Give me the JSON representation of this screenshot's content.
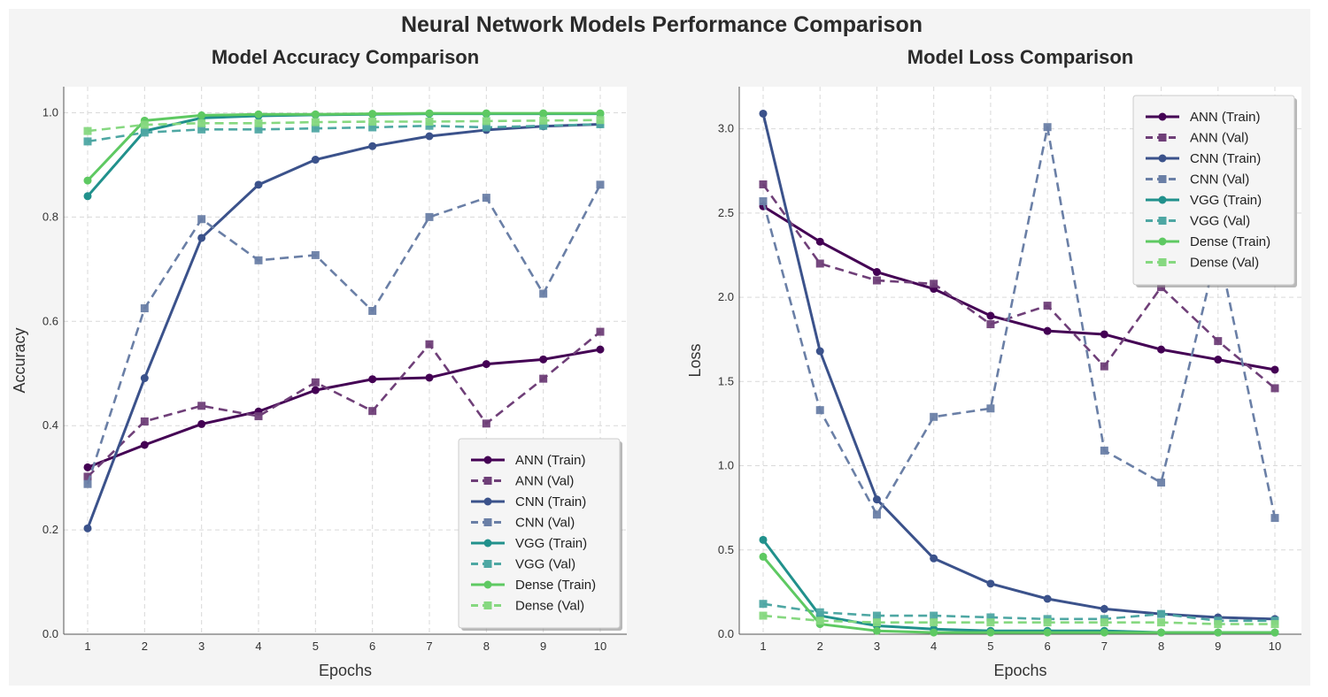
{
  "suptitle": "Neural Network Models Performance Comparison",
  "chart_data": [
    {
      "type": "line",
      "title": "Model Accuracy Comparison",
      "xlabel": "Epochs",
      "ylabel": "Accuracy",
      "x": [
        1,
        2,
        3,
        4,
        5,
        6,
        7,
        8,
        9,
        10
      ],
      "xticks": [
        "1",
        "2",
        "3",
        "4",
        "5",
        "6",
        "7",
        "8",
        "9",
        "10"
      ],
      "ylim": [
        0,
        1.05
      ],
      "yticks": [
        "0.0",
        "0.2",
        "0.4",
        "0.6",
        "0.8",
        "1.0"
      ],
      "ytick_values": [
        0,
        0.2,
        0.4,
        0.6,
        0.8,
        1.0
      ],
      "grid": true,
      "legend_position": "bottom-right",
      "series": [
        {
          "name": "ANN (Train)",
          "color": "#440154",
          "style": "solid",
          "marker": "circle",
          "values": [
            0.32,
            0.363,
            0.403,
            0.427,
            0.468,
            0.489,
            0.492,
            0.518,
            0.527,
            0.546
          ]
        },
        {
          "name": "ANN (Val)",
          "color": "#6f3f78",
          "style": "dashed",
          "marker": "square",
          "values": [
            0.302,
            0.408,
            0.438,
            0.418,
            0.483,
            0.428,
            0.556,
            0.404,
            0.49,
            0.58
          ]
        },
        {
          "name": "CNN (Train)",
          "color": "#3b528b",
          "style": "solid",
          "marker": "circle",
          "values": [
            0.203,
            0.491,
            0.76,
            0.862,
            0.91,
            0.936,
            0.955,
            0.967,
            0.974,
            0.978
          ]
        },
        {
          "name": "CNN (Val)",
          "color": "#6a7fa6",
          "style": "dashed",
          "marker": "square",
          "values": [
            0.288,
            0.625,
            0.796,
            0.717,
            0.727,
            0.62,
            0.8,
            0.837,
            0.653,
            0.862
          ]
        },
        {
          "name": "VGG (Train)",
          "color": "#21918c",
          "style": "solid",
          "marker": "circle",
          "values": [
            0.84,
            0.965,
            0.99,
            0.994,
            0.996,
            0.997,
            0.998,
            0.998,
            0.998,
            0.998
          ]
        },
        {
          "name": "VGG (Val)",
          "color": "#4ea7a3",
          "style": "dashed",
          "marker": "square",
          "values": [
            0.945,
            0.962,
            0.968,
            0.968,
            0.97,
            0.972,
            0.975,
            0.972,
            0.975,
            0.978
          ]
        },
        {
          "name": "Dense (Train)",
          "color": "#5ec962",
          "style": "solid",
          "marker": "circle",
          "values": [
            0.87,
            0.985,
            0.995,
            0.997,
            0.997,
            0.998,
            0.999,
            0.999,
            0.999,
            0.999
          ]
        },
        {
          "name": "Dense (Val)",
          "color": "#86d880",
          "style": "dashed",
          "marker": "square",
          "values": [
            0.965,
            0.977,
            0.98,
            0.98,
            0.982,
            0.983,
            0.983,
            0.984,
            0.985,
            0.986
          ]
        }
      ]
    },
    {
      "type": "line",
      "title": "Model Loss Comparison",
      "xlabel": "Epochs",
      "ylabel": "Loss",
      "x": [
        1,
        2,
        3,
        4,
        5,
        6,
        7,
        8,
        9,
        10
      ],
      "xticks": [
        "1",
        "2",
        "3",
        "4",
        "5",
        "6",
        "7",
        "8",
        "9",
        "10"
      ],
      "ylim": [
        0,
        3.25
      ],
      "yticks": [
        "0.0",
        "0.5",
        "1.0",
        "1.5",
        "2.0",
        "2.5",
        "3.0"
      ],
      "ytick_values": [
        0,
        0.5,
        1.0,
        1.5,
        2.0,
        2.5,
        3.0
      ],
      "grid": true,
      "legend_position": "top-right",
      "series": [
        {
          "name": "ANN (Train)",
          "color": "#440154",
          "style": "solid",
          "marker": "circle",
          "values": [
            2.54,
            2.33,
            2.15,
            2.05,
            1.89,
            1.8,
            1.78,
            1.69,
            1.63,
            1.57
          ]
        },
        {
          "name": "ANN (Val)",
          "color": "#6f3f78",
          "style": "dashed",
          "marker": "square",
          "values": [
            2.67,
            2.2,
            2.1,
            2.08,
            1.84,
            1.95,
            1.59,
            2.06,
            1.74,
            1.46
          ]
        },
        {
          "name": "CNN (Train)",
          "color": "#3b528b",
          "style": "solid",
          "marker": "circle",
          "values": [
            3.09,
            1.68,
            0.8,
            0.45,
            0.3,
            0.21,
            0.15,
            0.12,
            0.1,
            0.09
          ]
        },
        {
          "name": "CNN (Val)",
          "color": "#6a7fa6",
          "style": "dashed",
          "marker": "square",
          "values": [
            2.57,
            1.33,
            0.71,
            1.29,
            1.34,
            3.01,
            1.09,
            0.9,
            2.3,
            0.69
          ]
        },
        {
          "name": "VGG (Train)",
          "color": "#21918c",
          "style": "solid",
          "marker": "circle",
          "values": [
            0.56,
            0.11,
            0.05,
            0.03,
            0.02,
            0.02,
            0.02,
            0.01,
            0.01,
            0.01
          ]
        },
        {
          "name": "VGG (Val)",
          "color": "#4ea7a3",
          "style": "dashed",
          "marker": "square",
          "values": [
            0.18,
            0.13,
            0.11,
            0.11,
            0.1,
            0.09,
            0.09,
            0.12,
            0.08,
            0.08
          ]
        },
        {
          "name": "Dense (Train)",
          "color": "#5ec962",
          "style": "solid",
          "marker": "circle",
          "values": [
            0.46,
            0.06,
            0.02,
            0.01,
            0.01,
            0.01,
            0.01,
            0.01,
            0.01,
            0.01
          ]
        },
        {
          "name": "Dense (Val)",
          "color": "#86d880",
          "style": "dashed",
          "marker": "square",
          "values": [
            0.11,
            0.08,
            0.07,
            0.07,
            0.07,
            0.07,
            0.07,
            0.07,
            0.06,
            0.06
          ]
        }
      ]
    }
  ]
}
